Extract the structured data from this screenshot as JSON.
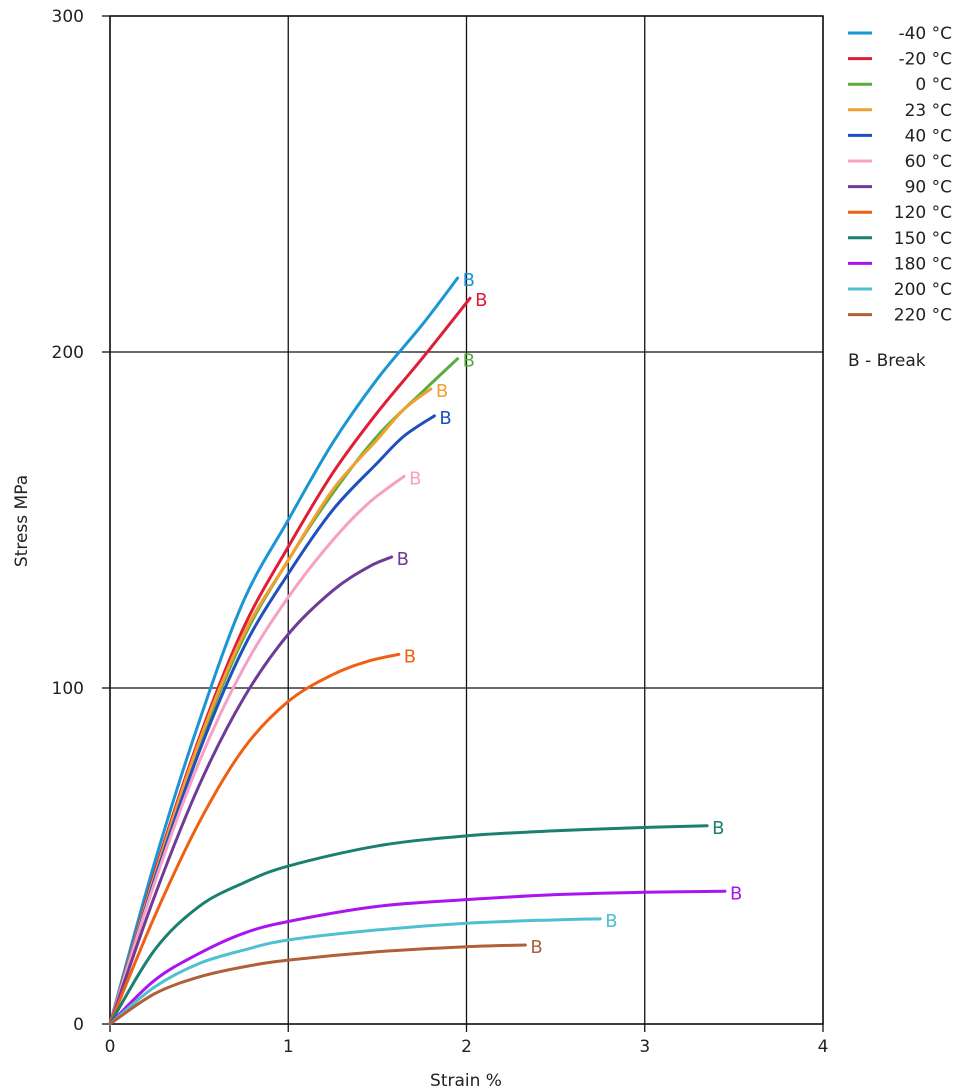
{
  "chart_data": {
    "type": "line",
    "xlabel": "Strain  %",
    "ylabel": "Stress  MPa",
    "xlim": [
      0,
      4
    ],
    "ylim": [
      0,
      300
    ],
    "x_ticks": [
      "0",
      "1",
      "2",
      "3",
      "4"
    ],
    "y_ticks": [
      "0",
      "100",
      "200",
      "300"
    ],
    "grid": true,
    "legend_position": "right",
    "break_marker": "B",
    "break_note": "B - Break",
    "series": [
      {
        "name": "-40 °C",
        "color": "#1a96d4",
        "points": [
          [
            0,
            0
          ],
          [
            0.25,
            48
          ],
          [
            0.5,
            90
          ],
          [
            0.75,
            126
          ],
          [
            1.0,
            150
          ],
          [
            1.25,
            173
          ],
          [
            1.5,
            192
          ],
          [
            1.75,
            208
          ],
          [
            1.95,
            222
          ]
        ]
      },
      {
        "name": "-20 °C",
        "color": "#e01c36",
        "points": [
          [
            0,
            0
          ],
          [
            0.25,
            45
          ],
          [
            0.5,
            85
          ],
          [
            0.75,
            118
          ],
          [
            1.0,
            142
          ],
          [
            1.25,
            164
          ],
          [
            1.5,
            182
          ],
          [
            1.75,
            198
          ],
          [
            2.02,
            216
          ]
        ]
      },
      {
        "name": "0 °C",
        "color": "#5aad3c",
        "points": [
          [
            0,
            0
          ],
          [
            0.25,
            44
          ],
          [
            0.5,
            83
          ],
          [
            0.75,
            115
          ],
          [
            1.0,
            138
          ],
          [
            1.25,
            158
          ],
          [
            1.5,
            175
          ],
          [
            1.75,
            188
          ],
          [
            1.95,
            198
          ]
        ]
      },
      {
        "name": "23 °C",
        "color": "#f0a030",
        "points": [
          [
            0,
            0
          ],
          [
            0.25,
            44
          ],
          [
            0.5,
            84
          ],
          [
            0.75,
            116
          ],
          [
            1.0,
            138
          ],
          [
            1.25,
            159
          ],
          [
            1.5,
            174
          ],
          [
            1.65,
            183
          ],
          [
            1.8,
            189
          ]
        ]
      },
      {
        "name": "40 °C",
        "color": "#1f4fc0",
        "points": [
          [
            0,
            0
          ],
          [
            0.25,
            43
          ],
          [
            0.5,
            81
          ],
          [
            0.75,
            112
          ],
          [
            1.0,
            134
          ],
          [
            1.25,
            153
          ],
          [
            1.5,
            167
          ],
          [
            1.65,
            175
          ],
          [
            1.82,
            181
          ]
        ]
      },
      {
        "name": "60 °C",
        "color": "#f7a0c3",
        "points": [
          [
            0,
            0
          ],
          [
            0.25,
            42
          ],
          [
            0.5,
            78
          ],
          [
            0.75,
            106
          ],
          [
            1.0,
            127
          ],
          [
            1.25,
            144
          ],
          [
            1.45,
            155
          ],
          [
            1.65,
            163
          ]
        ]
      },
      {
        "name": "90 °C",
        "color": "#6f3b97",
        "points": [
          [
            0,
            0
          ],
          [
            0.25,
            38
          ],
          [
            0.5,
            71
          ],
          [
            0.75,
            97
          ],
          [
            1.0,
            116
          ],
          [
            1.25,
            129
          ],
          [
            1.45,
            136
          ],
          [
            1.58,
            139
          ]
        ]
      },
      {
        "name": "120 °C",
        "color": "#f06014",
        "points": [
          [
            0,
            0
          ],
          [
            0.25,
            32
          ],
          [
            0.5,
            60
          ],
          [
            0.75,
            82
          ],
          [
            1.0,
            96
          ],
          [
            1.25,
            104
          ],
          [
            1.45,
            108
          ],
          [
            1.62,
            110
          ]
        ]
      },
      {
        "name": "150 °C",
        "color": "#1a8070",
        "points": [
          [
            0,
            0
          ],
          [
            0.25,
            22
          ],
          [
            0.5,
            35
          ],
          [
            0.75,
            42
          ],
          [
            1.0,
            47
          ],
          [
            1.5,
            53
          ],
          [
            2.0,
            56
          ],
          [
            2.5,
            57.5
          ],
          [
            3.0,
            58.5
          ],
          [
            3.35,
            59
          ]
        ]
      },
      {
        "name": "180 °C",
        "color": "#aa14f0",
        "points": [
          [
            0,
            0
          ],
          [
            0.25,
            13
          ],
          [
            0.5,
            21
          ],
          [
            0.75,
            27
          ],
          [
            1.0,
            30.5
          ],
          [
            1.5,
            35
          ],
          [
            2.0,
            37
          ],
          [
            2.5,
            38.5
          ],
          [
            3.0,
            39.2
          ],
          [
            3.45,
            39.5
          ]
        ]
      },
      {
        "name": "200 °C",
        "color": "#4fc0d0",
        "points": [
          [
            0,
            0
          ],
          [
            0.25,
            11
          ],
          [
            0.5,
            18
          ],
          [
            0.75,
            22
          ],
          [
            1.0,
            25
          ],
          [
            1.5,
            28
          ],
          [
            2.0,
            30
          ],
          [
            2.5,
            31
          ],
          [
            2.75,
            31.3
          ]
        ]
      },
      {
        "name": "220 °C",
        "color": "#b06038",
        "points": [
          [
            0,
            0
          ],
          [
            0.25,
            9
          ],
          [
            0.5,
            14
          ],
          [
            0.75,
            17
          ],
          [
            1.0,
            19
          ],
          [
            1.5,
            21.5
          ],
          [
            2.0,
            23
          ],
          [
            2.33,
            23.5
          ]
        ]
      }
    ]
  }
}
